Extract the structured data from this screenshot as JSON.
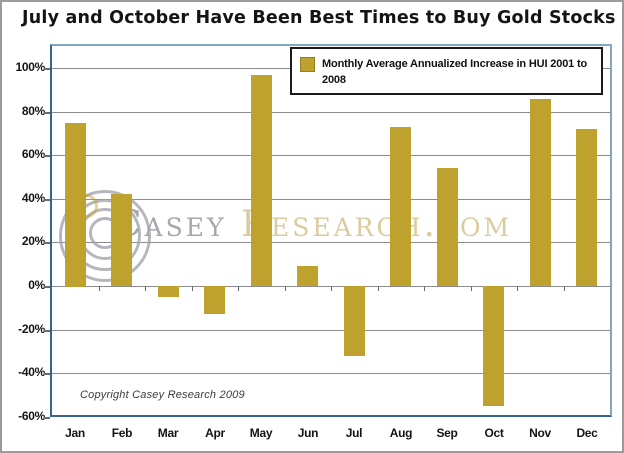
{
  "title": "July and October Have Been Best Times to Buy Gold Stocks",
  "chart_data": {
    "type": "bar",
    "title": "July and October Have Been Best Times to Buy Gold Stocks",
    "categories": [
      "Jan",
      "Feb",
      "Mar",
      "Apr",
      "May",
      "Jun",
      "Jul",
      "Aug",
      "Sep",
      "Oct",
      "Nov",
      "Dec"
    ],
    "series": [
      {
        "name": "Monthly Average Annualized Increase in HUI 2001 to 2008",
        "values": [
          75,
          42,
          -5,
          -13,
          97,
          9,
          -32,
          73,
          54,
          -55,
          86,
          72
        ]
      }
    ],
    "xlabel": "",
    "ylabel": "",
    "ylim": [
      -60,
      100
    ],
    "yticks": [
      100,
      80,
      60,
      40,
      20,
      0,
      -20,
      -40,
      -60
    ],
    "ytick_labels": [
      "100%",
      "80%",
      "60%",
      "40%",
      "20%",
      "0%",
      "-20%",
      "-40%",
      "-60%"
    ],
    "grid": true,
    "legend_position": "inside-top-right",
    "bar_color": "#BFA22D"
  },
  "legend": {
    "label": "Monthly Average Annualized Increase in HUI 2001 to 2008"
  },
  "watermark": {
    "text_gray": "Casey",
    "text_gold": "Research.com"
  },
  "footer": {
    "copyright": "Copyright Casey Research 2009"
  },
  "colors": {
    "bar": "#BFA22D",
    "gridline": "#8C8C8C",
    "axis_frame_light": "#7FA7C6",
    "axis_frame_dark": "#35648F",
    "legend_border": "#1B1B1B",
    "title_text": "#141414",
    "watermark_gray": "#9C9CA3",
    "watermark_gold": "#D6C794",
    "copyright_text": "#3C3C3C",
    "outer_border": "#9B9B9B",
    "background": "#FFFFFF"
  }
}
